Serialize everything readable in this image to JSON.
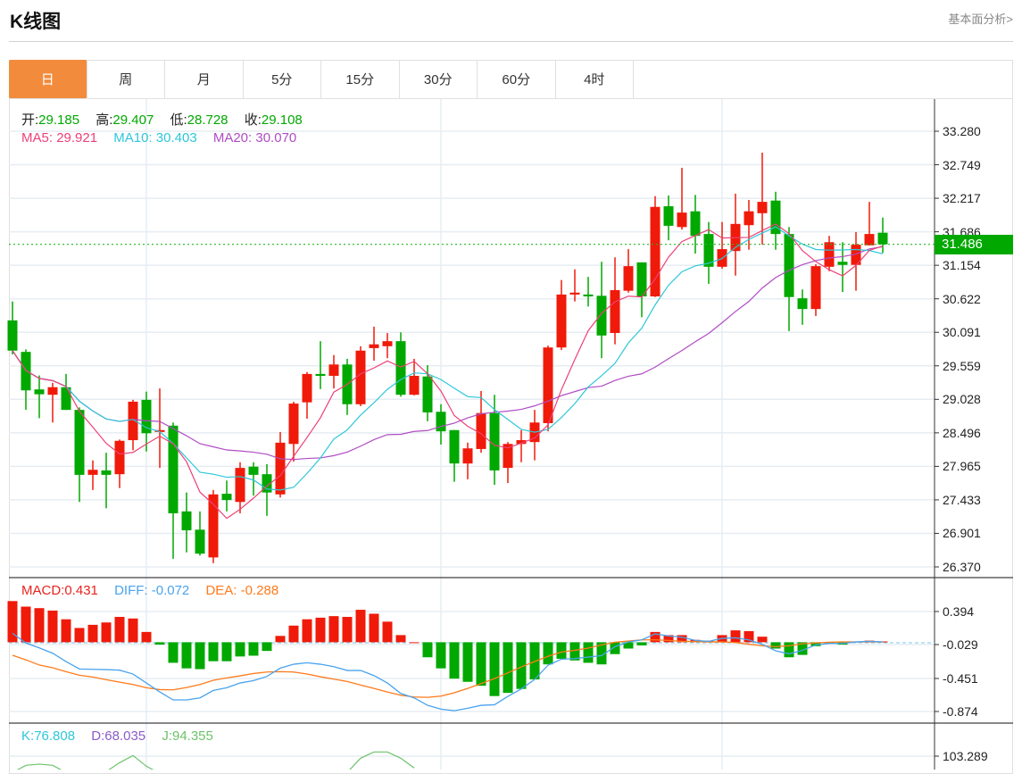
{
  "header": {
    "title": "K线图",
    "more_link": "基本面分析>"
  },
  "tabs": [
    {
      "label": "日",
      "active": true
    },
    {
      "label": "周"
    },
    {
      "label": "月"
    },
    {
      "label": "5分"
    },
    {
      "label": "15分"
    },
    {
      "label": "30分"
    },
    {
      "label": "60分"
    },
    {
      "label": "4时"
    }
  ],
  "ohlc_legend": {
    "open_label": "开:",
    "open": "29.185",
    "high_label": "高:",
    "high": "29.407",
    "low_label": "低:",
    "low": "28.728",
    "close_label": "收:",
    "close": "29.108"
  },
  "ma_legend": {
    "ma5_label": "MA5:",
    "ma5": "29.921",
    "ma10_label": "MA10:",
    "ma10": "30.403",
    "ma20_label": "MA20:",
    "ma20": "30.070"
  },
  "macd_legend": {
    "macd_label": "MACD:",
    "macd": "0.431",
    "diff_label": "DIFF:",
    "diff": "-0.072",
    "dea_label": "DEA:",
    "dea": "-0.288"
  },
  "kdj_legend": {
    "k_label": "K:",
    "k": "76.808",
    "d_label": "D:",
    "d": "68.035",
    "j_label": "J:",
    "j": "94.355"
  },
  "current_price": "31.486",
  "colors": {
    "up": "#f01a0a",
    "down": "#00a800",
    "tab_active": "#f28c3c",
    "ma5": "#ee4078",
    "ma10": "#2ec7d9",
    "ma20": "#b04cc4",
    "diff": "#4aa3ee",
    "dea": "#ff7a1a",
    "macd": "#e8231e",
    "k": "#2ec7d9",
    "d": "#8a5cc8",
    "j": "#6cc36c"
  },
  "chart_data": [
    {
      "type": "candlestick",
      "title": "K线图",
      "price_ticks": [
        "33.280",
        "32.749",
        "32.217",
        "31.686",
        "31.154",
        "30.622",
        "30.091",
        "29.559",
        "29.028",
        "28.496",
        "27.965",
        "27.433",
        "26.901",
        "26.370"
      ],
      "ylim": [
        26.37,
        33.28
      ],
      "grid": true,
      "candles_ohlc": [
        [
          30.28,
          30.58,
          29.74,
          29.8
        ],
        [
          29.78,
          29.82,
          28.86,
          29.17
        ],
        [
          29.185,
          29.407,
          28.728,
          29.108
        ],
        [
          29.1,
          29.29,
          28.66,
          29.22
        ],
        [
          29.22,
          29.43,
          28.86,
          28.86
        ],
        [
          28.86,
          28.9,
          27.4,
          27.83
        ],
        [
          27.83,
          28.06,
          27.59,
          27.91
        ],
        [
          27.9,
          28.18,
          27.3,
          27.83
        ],
        [
          27.84,
          28.39,
          27.62,
          28.37
        ],
        [
          28.38,
          29.02,
          28.22,
          28.99
        ],
        [
          29.02,
          29.15,
          28.2,
          28.49
        ],
        [
          28.51,
          29.2,
          27.94,
          28.54
        ],
        [
          28.61,
          28.66,
          26.5,
          27.22
        ],
        [
          27.25,
          27.55,
          26.6,
          26.95
        ],
        [
          26.96,
          27.25,
          26.55,
          26.58
        ],
        [
          26.52,
          27.59,
          26.43,
          27.52
        ],
        [
          27.53,
          27.74,
          27.25,
          27.43
        ],
        [
          27.4,
          28.03,
          27.22,
          27.94
        ],
        [
          27.96,
          28.03,
          27.5,
          27.83
        ],
        [
          27.84,
          28.0,
          27.18,
          27.55
        ],
        [
          27.52,
          28.51,
          27.47,
          28.34
        ],
        [
          28.32,
          28.99,
          28.04,
          28.96
        ],
        [
          28.98,
          29.46,
          28.72,
          29.43
        ],
        [
          29.43,
          29.95,
          29.19,
          29.4
        ],
        [
          29.4,
          29.73,
          29.2,
          29.58
        ],
        [
          29.58,
          29.67,
          28.78,
          28.95
        ],
        [
          28.95,
          29.87,
          28.92,
          29.8
        ],
        [
          29.84,
          30.18,
          29.64,
          29.9
        ],
        [
          29.87,
          30.08,
          29.68,
          29.95
        ],
        [
          29.95,
          30.09,
          29.07,
          29.1
        ],
        [
          29.1,
          29.67,
          29.09,
          29.4
        ],
        [
          29.39,
          29.57,
          28.68,
          28.82
        ],
        [
          28.83,
          28.95,
          28.31,
          28.52
        ],
        [
          28.54,
          28.54,
          27.72,
          28.01
        ],
        [
          28.01,
          28.34,
          27.76,
          28.25
        ],
        [
          28.24,
          29.16,
          28.18,
          28.81
        ],
        [
          28.81,
          29.1,
          27.67,
          27.9
        ],
        [
          27.94,
          28.35,
          27.7,
          28.32
        ],
        [
          28.32,
          28.54,
          28.03,
          28.38
        ],
        [
          28.35,
          28.86,
          28.06,
          28.66
        ],
        [
          28.65,
          29.88,
          28.52,
          29.85
        ],
        [
          29.85,
          30.92,
          29.81,
          30.69
        ],
        [
          30.69,
          31.09,
          30.58,
          30.72
        ],
        [
          30.69,
          30.97,
          30.5,
          30.66
        ],
        [
          30.67,
          31.21,
          29.68,
          30.04
        ],
        [
          30.08,
          31.28,
          29.9,
          30.76
        ],
        [
          30.75,
          31.41,
          30.72,
          31.14
        ],
        [
          31.2,
          31.2,
          30.33,
          30.66
        ],
        [
          30.66,
          32.25,
          30.65,
          32.08
        ],
        [
          32.09,
          32.26,
          31.55,
          31.78
        ],
        [
          31.76,
          32.7,
          31.72,
          31.99
        ],
        [
          32.01,
          32.27,
          31.34,
          31.62
        ],
        [
          31.65,
          31.84,
          30.86,
          31.13
        ],
        [
          31.13,
          31.84,
          31.1,
          31.41
        ],
        [
          31.38,
          32.29,
          30.99,
          31.81
        ],
        [
          31.79,
          32.19,
          31.4,
          32.01
        ],
        [
          31.98,
          32.94,
          31.48,
          32.16
        ],
        [
          32.18,
          32.32,
          31.4,
          31.65
        ],
        [
          31.65,
          31.76,
          30.11,
          30.65
        ],
        [
          30.63,
          30.77,
          30.21,
          30.46
        ],
        [
          30.46,
          31.17,
          30.35,
          31.14
        ],
        [
          31.13,
          31.62,
          31.06,
          31.52
        ],
        [
          31.21,
          31.52,
          30.73,
          31.16
        ],
        [
          31.16,
          31.68,
          30.75,
          31.48
        ],
        [
          31.47,
          32.16,
          31.47,
          31.65
        ],
        [
          31.67,
          31.91,
          31.35,
          31.486
        ]
      ],
      "moving_averages": [
        5,
        10,
        20
      ]
    },
    {
      "type": "bar+line",
      "title": "MACD",
      "ticks": [
        "0.394",
        "-0.029",
        "-0.451",
        "-0.874"
      ],
      "histogram": [
        0.52,
        0.45,
        0.431,
        0.4,
        0.29,
        0.18,
        0.22,
        0.25,
        0.32,
        0.3,
        0.13,
        -0.03,
        -0.26,
        -0.33,
        -0.34,
        -0.24,
        -0.24,
        -0.18,
        -0.17,
        -0.11,
        0.08,
        0.21,
        0.29,
        0.31,
        0.33,
        0.32,
        0.41,
        0.36,
        0.26,
        0.09,
        0.0,
        -0.19,
        -0.33,
        -0.46,
        -0.5,
        -0.55,
        -0.68,
        -0.64,
        -0.59,
        -0.47,
        -0.28,
        -0.21,
        -0.23,
        -0.26,
        -0.28,
        -0.15,
        -0.08,
        -0.04,
        0.13,
        0.09,
        0.09,
        0.03,
        0.02,
        0.09,
        0.15,
        0.14,
        0.07,
        -0.08,
        -0.19,
        -0.16,
        -0.05,
        -0.01,
        -0.03,
        0.01,
        0.02,
        0.01
      ],
      "diff": [
        0.113,
        -0.01,
        -0.072,
        -0.139,
        -0.244,
        -0.338,
        -0.342,
        -0.346,
        -0.353,
        -0.402,
        -0.515,
        -0.628,
        -0.729,
        -0.729,
        -0.703,
        -0.609,
        -0.575,
        -0.515,
        -0.485,
        -0.432,
        -0.327,
        -0.278,
        -0.259,
        -0.278,
        -0.308,
        -0.357,
        -0.357,
        -0.421,
        -0.515,
        -0.647,
        -0.703,
        -0.797,
        -0.846,
        -0.865,
        -0.835,
        -0.797,
        -0.79,
        -0.684,
        -0.59,
        -0.47,
        -0.29,
        -0.214,
        -0.207,
        -0.188,
        -0.169,
        -0.056,
        0.004,
        0.03,
        0.105,
        0.079,
        0.064,
        0.023,
        0.011,
        0.049,
        0.056,
        0.03,
        -0.026,
        -0.109,
        -0.147,
        -0.102,
        -0.034,
        -0.015,
        -0.015,
        0.004,
        0.011,
        0.004
      ],
      "dea": [
        -0.165,
        -0.222,
        -0.288,
        -0.323,
        -0.372,
        -0.417,
        -0.44,
        -0.474,
        -0.504,
        -0.534,
        -0.575,
        -0.598,
        -0.602,
        -0.572,
        -0.534,
        -0.481,
        -0.451,
        -0.425,
        -0.395,
        -0.376,
        -0.372,
        -0.376,
        -0.402,
        -0.436,
        -0.466,
        -0.496,
        -0.541,
        -0.583,
        -0.628,
        -0.669,
        -0.692,
        -0.696,
        -0.681,
        -0.639,
        -0.583,
        -0.523,
        -0.459,
        -0.387,
        -0.312,
        -0.244,
        -0.177,
        -0.124,
        -0.102,
        -0.075,
        -0.034,
        0.0,
        0.015,
        0.03,
        0.03,
        0.023,
        0.011,
        0.008,
        0.004,
        0.004,
        -0.004,
        -0.026,
        -0.045,
        -0.056,
        -0.045,
        -0.019,
        -0.008,
        0.0,
        0.004,
        0.004,
        0.004,
        0.004
      ]
    },
    {
      "type": "line",
      "title": "KDJ",
      "ticks": [
        "103.289"
      ],
      "j_visible": [
        85,
        93,
        94.355,
        93,
        85,
        null,
        null,
        86,
        96,
        104,
        92,
        84,
        null,
        null,
        null,
        null,
        null,
        null,
        null,
        null,
        null,
        null,
        null,
        null,
        null,
        85,
        101,
        108,
        108,
        101,
        90,
        null,
        null,
        null,
        null,
        null,
        null,
        null,
        null,
        null,
        null,
        null,
        null,
        null,
        null,
        null,
        null,
        null,
        null,
        null,
        null,
        null,
        null,
        null,
        null,
        null,
        null,
        null,
        null,
        null,
        null,
        null,
        null,
        null,
        null,
        null
      ]
    }
  ]
}
